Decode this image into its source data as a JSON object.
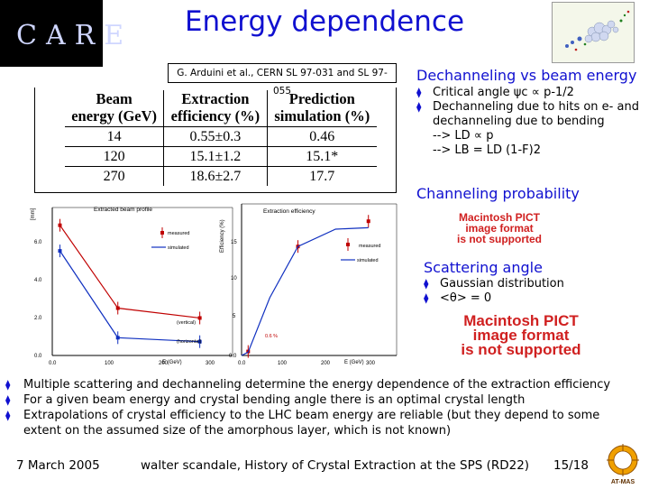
{
  "header": {
    "logo_text": "CARE",
    "title": "Energy dependence",
    "citation": "G. Arduini et al., CERN SL 97-031 and SL 97-055"
  },
  "table": {
    "headers": [
      {
        "line1": "Beam",
        "line2": "energy (GeV)"
      },
      {
        "line1": "Extraction",
        "line2": "efficiency (%)"
      },
      {
        "line1": "Prediction",
        "line2": "simulation (%)"
      }
    ],
    "rows": [
      [
        "14",
        "0.55±0.3",
        "0.46"
      ],
      [
        "120",
        "15.1±1.2",
        "15.1*"
      ],
      [
        "270",
        "18.6±2.7",
        "17.7"
      ]
    ]
  },
  "right": {
    "dechanneling_title": "Dechanneling vs beam energy",
    "bullet1": "Critical angle ψc ∝ p-1/2",
    "bullet2": "Dechanneling due to hits on e- and dechanneling due to bending",
    "line3": "--> LD ∝ p",
    "line4": "--> LB = LD (1-F)2",
    "channeling_title": "Channeling probability",
    "pict1_line1": "Macintosh PICT",
    "pict1_line2": "image format",
    "pict1_line3": "is not supported",
    "scattering_title": "Scattering angle",
    "bullet3": "Gaussian distribution",
    "bullet4": "<θ> = 0",
    "pict2_line1": "Macintosh PICT",
    "pict2_line2": "image format",
    "pict2_line3": "is not supported"
  },
  "plots": {
    "left": {
      "title": "Extracted beam profile",
      "ylabel": "[mm]",
      "xlabel": "E (GeV)",
      "legend_measured": "measured",
      "legend_simulated": "simulated",
      "label_vertical": "(vertical)",
      "label_horizontal": "(horizontal)",
      "y_ticks": [
        "6.0",
        "4.0",
        "2.0",
        "0.0"
      ],
      "x_ticks": [
        "0.0",
        "100",
        "200",
        "300"
      ],
      "chart_data": {
        "type": "line",
        "series": [
          {
            "name": "(vertical)",
            "x": [
              14,
              120,
              270
            ],
            "y": [
              6.6,
              2.4,
              1.9
            ]
          },
          {
            "name": "(horizontal)",
            "x": [
              14,
              120,
              270
            ],
            "y": [
              5.3,
              0.9,
              0.7
            ]
          }
        ],
        "xlim": [
          0,
          330
        ],
        "ylim": [
          0,
          7.5
        ]
      }
    },
    "right": {
      "title": "Extraction efficiency",
      "ylabel": "Efficiency (%)",
      "xlabel": "E (GeV)",
      "legend_measured": "measured",
      "legend_simulated": "simulated",
      "annotation": "0.6 %",
      "y_ticks": [
        "15",
        "10",
        "5",
        "0.0"
      ],
      "x_ticks": [
        "0.0",
        "100",
        "200",
        "300"
      ],
      "chart_data": {
        "type": "line",
        "series": [
          {
            "name": "measured",
            "x": [
              14,
              120,
              270
            ],
            "y": [
              0.55,
              15.1,
              18.6
            ]
          },
          {
            "name": "simulated",
            "x": [
              0,
              14,
              60,
              120,
              200,
              270
            ],
            "y": [
              0,
              0.46,
              8,
              15.1,
              17.5,
              17.7
            ]
          }
        ],
        "xlim": [
          0,
          330
        ],
        "ylim": [
          0,
          21
        ]
      }
    }
  },
  "bottom": {
    "b1": "Multiple scattering and dechanneling determine the energy dependence of the extraction efficiency",
    "b2": "For a given beam energy and crystal bending angle there is an optimal crystal length",
    "b3": "Extrapolations of crystal efficiency to the LHC beam energy are reliable (but they depend to some",
    "b3_cont": "extent on the assumed size of the amorphous layer, which is not known)"
  },
  "footer": {
    "date": "7 March 2005",
    "author": "walter scandale, History of Crystal Extraction at the SPS (RD22)",
    "page": "15/18",
    "at_logo": "AT-MAS"
  }
}
